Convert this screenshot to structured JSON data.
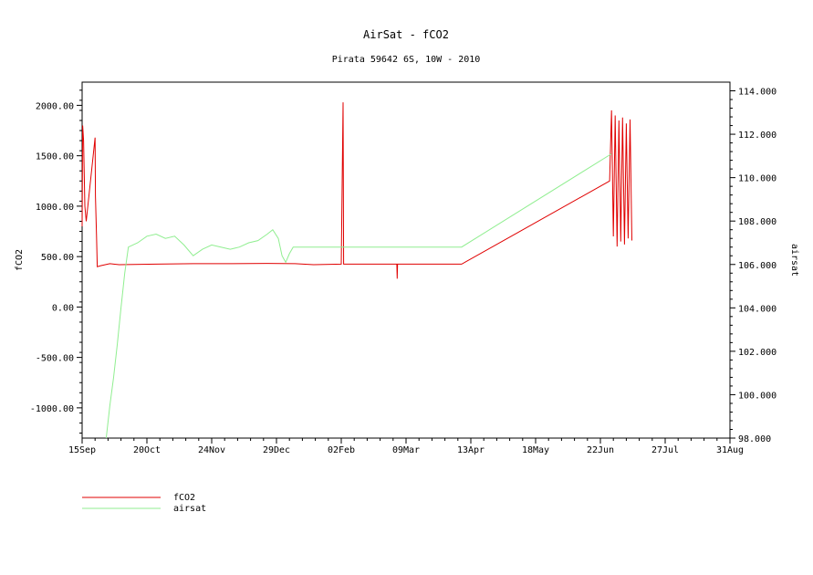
{
  "chart_data": {
    "type": "line",
    "title": "AirSat - fCO2",
    "subtitle": "Pirata 59642 6S, 10W - 2010",
    "x_ticks": [
      "15Sep",
      "20Oct",
      "24Nov",
      "29Dec",
      "02Feb",
      "09Mar",
      "13Apr",
      "18May",
      "22Jun",
      "27Jul",
      "31Aug"
    ],
    "xlim": [
      "15Sep",
      "31Aug"
    ],
    "left_axis": {
      "label": "fCO2",
      "ylim": [
        -1300,
        2230
      ],
      "ticks": [
        "2000.00",
        "1500.00",
        "1000.00",
        "500.00",
        "0.00",
        "-500.00",
        "-1000.00"
      ],
      "tick_values": [
        2000,
        1500,
        1000,
        500,
        0,
        -500,
        -1000
      ]
    },
    "right_axis": {
      "label": "airsat",
      "ylim": [
        98.0,
        114.4
      ],
      "ticks": [
        "114.000",
        "112.000",
        "110.000",
        "108.000",
        "106.000",
        "104.000",
        "102.000",
        "100.000",
        "98.000"
      ],
      "tick_values": [
        114,
        112,
        110,
        108,
        106,
        104,
        102,
        100,
        98
      ]
    },
    "series": [
      {
        "name": "fCO2",
        "axis": "left",
        "color": "#e00000",
        "points": [
          {
            "day": 0,
            "value": 800
          },
          {
            "day": 0.3,
            "value": 1800
          },
          {
            "day": 0.8,
            "value": 1650
          },
          {
            "day": 1.5,
            "value": 1000
          },
          {
            "day": 2.2,
            "value": 850
          },
          {
            "day": 7.0,
            "value": 1680
          },
          {
            "day": 7.2,
            "value": 1100
          },
          {
            "day": 7.8,
            "value": 700
          },
          {
            "day": 8.2,
            "value": 400
          },
          {
            "day": 10,
            "value": 410
          },
          {
            "day": 15,
            "value": 430
          },
          {
            "day": 20,
            "value": 420
          },
          {
            "day": 40,
            "value": 425
          },
          {
            "day": 60,
            "value": 430
          },
          {
            "day": 80,
            "value": 430
          },
          {
            "day": 100,
            "value": 432
          },
          {
            "day": 115,
            "value": 430
          },
          {
            "day": 125,
            "value": 420
          },
          {
            "day": 140,
            "value": 425
          },
          {
            "day": 141,
            "value": 2030
          },
          {
            "day": 141.3,
            "value": 425
          },
          {
            "day": 170,
            "value": 425
          },
          {
            "day": 170.2,
            "value": 280
          },
          {
            "day": 170.4,
            "value": 425
          },
          {
            "day": 205,
            "value": 425
          },
          {
            "day": 285,
            "value": 1250
          },
          {
            "day": 286,
            "value": 1950
          },
          {
            "day": 287,
            "value": 700
          },
          {
            "day": 288,
            "value": 1900
          },
          {
            "day": 289,
            "value": 600
          },
          {
            "day": 290,
            "value": 1850
          },
          {
            "day": 291,
            "value": 650
          },
          {
            "day": 292,
            "value": 1880
          },
          {
            "day": 293,
            "value": 620
          },
          {
            "day": 294,
            "value": 1820
          },
          {
            "day": 295,
            "value": 680
          },
          {
            "day": 296,
            "value": 1860
          },
          {
            "day": 297,
            "value": 660
          }
        ]
      },
      {
        "name": "airsat",
        "axis": "right",
        "color": "#90ee90",
        "points": [
          {
            "day": 13,
            "value": 98.0
          },
          {
            "day": 15,
            "value": 99.5
          },
          {
            "day": 17,
            "value": 100.8
          },
          {
            "day": 19,
            "value": 102.3
          },
          {
            "day": 21,
            "value": 104.0
          },
          {
            "day": 23,
            "value": 105.6
          },
          {
            "day": 25,
            "value": 106.8
          },
          {
            "day": 30,
            "value": 107.0
          },
          {
            "day": 35,
            "value": 107.3
          },
          {
            "day": 40,
            "value": 107.4
          },
          {
            "day": 45,
            "value": 107.2
          },
          {
            "day": 50,
            "value": 107.3
          },
          {
            "day": 55,
            "value": 106.9
          },
          {
            "day": 60,
            "value": 106.4
          },
          {
            "day": 65,
            "value": 106.7
          },
          {
            "day": 70,
            "value": 106.9
          },
          {
            "day": 75,
            "value": 106.8
          },
          {
            "day": 80,
            "value": 106.7
          },
          {
            "day": 85,
            "value": 106.8
          },
          {
            "day": 90,
            "value": 107.0
          },
          {
            "day": 95,
            "value": 107.1
          },
          {
            "day": 100,
            "value": 107.4
          },
          {
            "day": 103,
            "value": 107.6
          },
          {
            "day": 106,
            "value": 107.2
          },
          {
            "day": 108,
            "value": 106.4
          },
          {
            "day": 110,
            "value": 106.1
          },
          {
            "day": 112,
            "value": 106.5
          },
          {
            "day": 114,
            "value": 106.8
          },
          {
            "day": 205,
            "value": 106.8
          },
          {
            "day": 286,
            "value": 111.1
          }
        ]
      }
    ],
    "legend": {
      "position": "bottom-left",
      "entries": [
        "fCO2",
        "airsat"
      ]
    },
    "grid": false
  }
}
